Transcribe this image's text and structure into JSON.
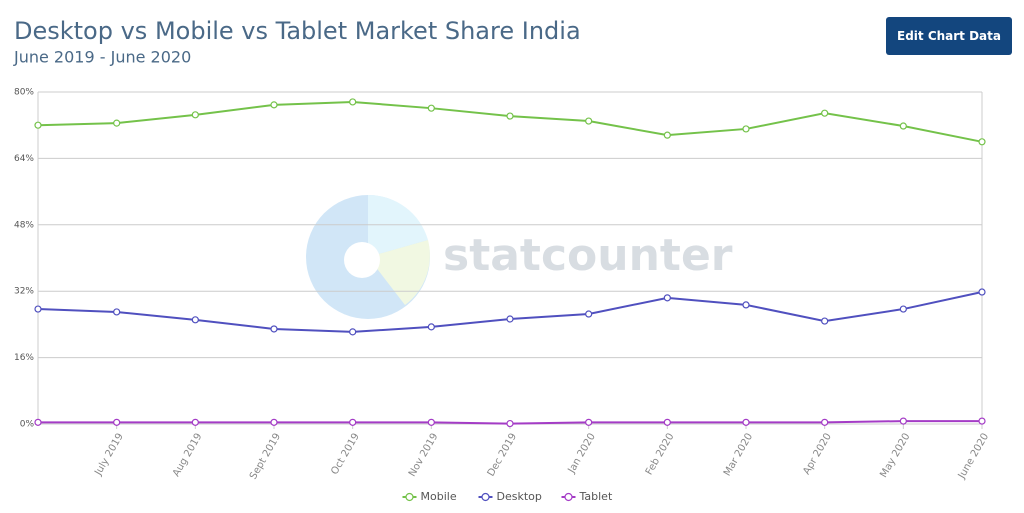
{
  "chart_data": {
    "type": "line",
    "title": "Desktop vs Mobile vs Tablet Market Share India",
    "subtitle": "June 2019 - June 2020",
    "button": "Edit Chart Data",
    "watermark": "statcounter",
    "categories": [
      null,
      "July 2019",
      "Aug 2019",
      "Sept 2019",
      "Oct 2019",
      "Nov 2019",
      "Dec 2019",
      "Jan 2020",
      "Feb 2020",
      "Mar 2020",
      "Apr 2020",
      "May 2020",
      "June 2020"
    ],
    "series": [
      {
        "name": "Mobile",
        "color": "#74c24a",
        "values": [
          72.0,
          72.5,
          74.5,
          76.9,
          77.6,
          76.1,
          74.2,
          73.0,
          69.6,
          71.1,
          74.9,
          71.8,
          68.0
        ]
      },
      {
        "name": "Desktop",
        "color": "#5050bf",
        "values": [
          27.7,
          27.0,
          25.1,
          22.9,
          22.2,
          23.4,
          25.3,
          26.5,
          30.4,
          28.7,
          24.8,
          27.7,
          31.8
        ]
      },
      {
        "name": "Tablet",
        "color": "#a43cc6",
        "values": [
          0.4,
          0.4,
          0.4,
          0.4,
          0.4,
          0.4,
          0.1,
          0.4,
          0.4,
          0.4,
          0.4,
          0.7,
          0.7
        ]
      }
    ],
    "ylim": [
      0,
      80
    ],
    "yticks": [
      {
        "value": 0,
        "label": "0%"
      },
      {
        "value": 16,
        "label": "16%"
      },
      {
        "value": 32,
        "label": "32%"
      },
      {
        "value": 48,
        "label": "48%"
      },
      {
        "value": 64,
        "label": "64%"
      },
      {
        "value": 80,
        "label": "80%"
      }
    ],
    "grid": true,
    "legend": "bottom"
  }
}
